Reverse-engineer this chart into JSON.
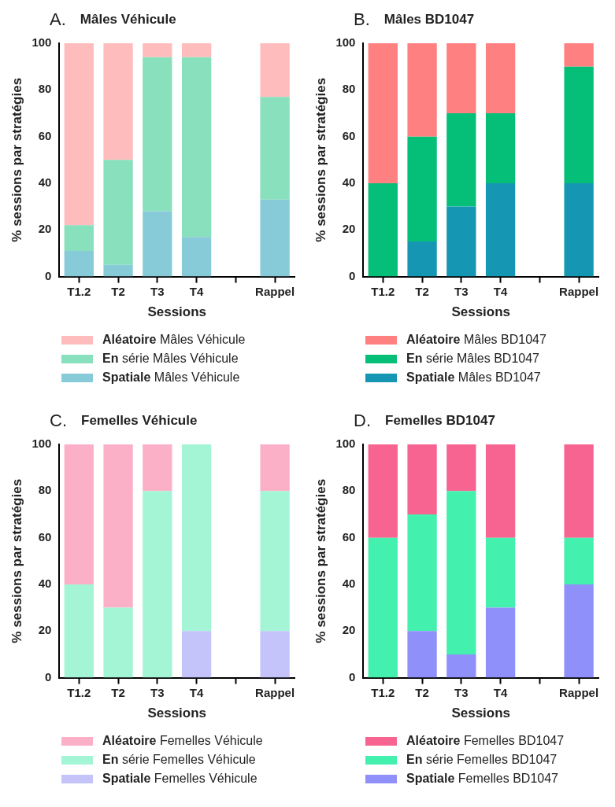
{
  "chart_data": [
    {
      "type": "bar",
      "title": "A. Mâles Véhicule",
      "xlabel": "Sessions",
      "ylabel": "% sessions par stratégies",
      "categories": [
        "T1.2",
        "T2",
        "T3",
        "T4",
        null,
        "Rappel"
      ],
      "stacked": true,
      "ylim": [
        0,
        100
      ],
      "yticks": [
        0,
        20,
        40,
        60,
        80,
        100
      ],
      "grid": false,
      "legend": "bottom",
      "series": [
        {
          "name": "Spatiale Mâles Véhicule",
          "color": "#88cbd8",
          "values": [
            11,
            5,
            28,
            17,
            null,
            33
          ]
        },
        {
          "name": "En série Mâles Véhicule",
          "color": "#88e0bc",
          "values": [
            11,
            45,
            66,
            77,
            null,
            44
          ]
        },
        {
          "name": "Aléatoire Mâles Véhicule",
          "color": "#ffbcbc",
          "values": [
            78,
            50,
            6,
            6,
            null,
            23
          ]
        }
      ]
    },
    {
      "type": "bar",
      "title": "B. Mâles BD1047",
      "xlabel": "Sessions",
      "ylabel": "% sessions par stratégies",
      "categories": [
        "T1.2",
        "T2",
        "T3",
        "T4",
        null,
        "Rappel"
      ],
      "stacked": true,
      "ylim": [
        0,
        100
      ],
      "yticks": [
        0,
        20,
        40,
        60,
        80,
        100
      ],
      "grid": false,
      "legend": "bottom",
      "series": [
        {
          "name": "Spatiale Mâles BD1047",
          "color": "#1597b3",
          "values": [
            0,
            15,
            30,
            40,
            null,
            40
          ]
        },
        {
          "name": "En série Mâles BD1047",
          "color": "#05bf78",
          "values": [
            40,
            45,
            40,
            30,
            null,
            50
          ]
        },
        {
          "name": "Aléatoire Mâles BD1047",
          "color": "#ff8080",
          "values": [
            60,
            40,
            30,
            30,
            null,
            10
          ]
        }
      ]
    },
    {
      "type": "bar",
      "title": "C. Femelles Véhicule",
      "xlabel": "Sessions",
      "ylabel": "% sessions par stratégies",
      "categories": [
        "T1.2",
        "T2",
        "T3",
        "T4",
        null,
        "Rappel"
      ],
      "stacked": true,
      "ylim": [
        0,
        100
      ],
      "yticks": [
        0,
        20,
        40,
        60,
        80,
        100
      ],
      "grid": false,
      "legend": "bottom",
      "series": [
        {
          "name": "Spatiale Femelles Véhicule",
          "color": "#c4c4fb",
          "values": [
            0,
            0,
            0,
            20,
            null,
            20
          ]
        },
        {
          "name": "En série Femelles Véhicule",
          "color": "#a4f5d6",
          "values": [
            40,
            30,
            80,
            80,
            null,
            60
          ]
        },
        {
          "name": "Aléatoire Femelles Véhicule",
          "color": "#fbb0c8",
          "values": [
            60,
            70,
            20,
            0,
            null,
            20
          ]
        }
      ]
    },
    {
      "type": "bar",
      "title": "D. Femelles BD1047",
      "xlabel": "Sessions",
      "ylabel": "% sessions par stratégies",
      "categories": [
        "T1.2",
        "T2",
        "T3",
        "T4",
        null,
        "Rappel"
      ],
      "stacked": true,
      "ylim": [
        0,
        100
      ],
      "yticks": [
        0,
        20,
        40,
        60,
        80,
        100
      ],
      "grid": false,
      "legend": "bottom",
      "series": [
        {
          "name": "Spatiale Femelles BD1047",
          "color": "#9090fb",
          "values": [
            0,
            20,
            10,
            30,
            null,
            40
          ]
        },
        {
          "name": "En série Femelles BD1047",
          "color": "#44f0ad",
          "values": [
            60,
            50,
            70,
            30,
            null,
            20
          ]
        },
        {
          "name": "Aléatoire Femelles BD1047",
          "color": "#f76491",
          "values": [
            40,
            30,
            20,
            40,
            null,
            40
          ]
        }
      ]
    }
  ]
}
